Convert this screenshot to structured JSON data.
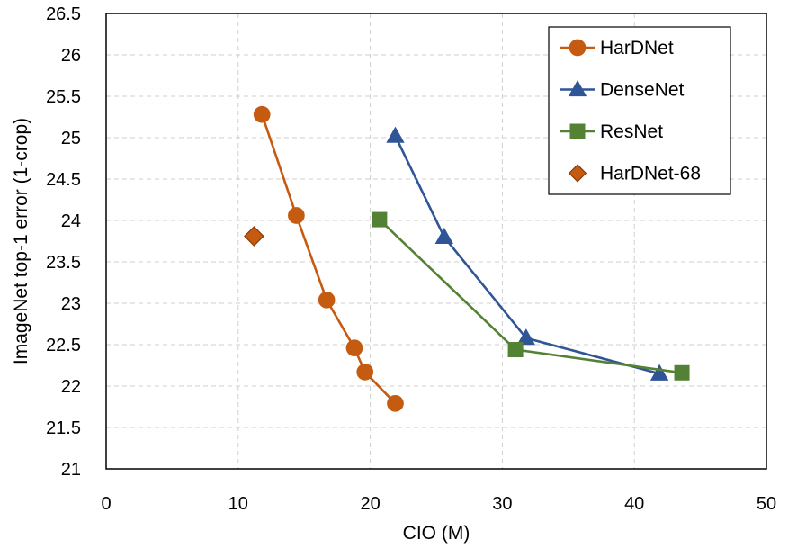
{
  "chart_data": {
    "type": "line",
    "title": "",
    "xlabel": "CIO (M)",
    "ylabel": "ImageNet top-1 error (1-crop)",
    "xlim": [
      0,
      50
    ],
    "ylim": [
      21,
      26.5
    ],
    "x_ticks": [
      0,
      10,
      20,
      30,
      40,
      50
    ],
    "y_ticks": [
      21,
      21.5,
      22,
      22.5,
      23,
      23.5,
      24,
      24.5,
      25,
      25.5,
      26,
      26.5
    ],
    "x_tick_labels": [
      "0",
      "10",
      "20",
      "30",
      "40",
      "50"
    ],
    "y_tick_labels": [
      "21",
      "21.5",
      "22",
      "22.5",
      "23",
      "23.5",
      "24",
      "24.5",
      "25",
      "25.5",
      "26",
      "26.5"
    ],
    "grid": true,
    "legend_position": "top-right",
    "series": [
      {
        "name": "HarDNet",
        "color": "#c55a11",
        "marker": "circle",
        "line": true,
        "points": [
          [
            11.8,
            25.28
          ],
          [
            14.4,
            24.06
          ],
          [
            16.7,
            23.04
          ],
          [
            18.8,
            22.46
          ],
          [
            19.6,
            22.17
          ],
          [
            21.9,
            21.79
          ]
        ]
      },
      {
        "name": "DenseNet",
        "color": "#2f5597",
        "marker": "triangle",
        "line": true,
        "points": [
          [
            21.9,
            25.02
          ],
          [
            25.6,
            23.8
          ],
          [
            31.8,
            22.58
          ],
          [
            41.9,
            22.15
          ]
        ]
      },
      {
        "name": "ResNet",
        "color": "#548235",
        "marker": "square",
        "line": true,
        "points": [
          [
            20.7,
            24.01
          ],
          [
            31.0,
            22.44
          ],
          [
            43.6,
            22.16
          ]
        ]
      },
      {
        "name": "HarDNet-68",
        "color": "#c55a11",
        "marker": "diamond",
        "line": false,
        "points": [
          [
            11.2,
            23.81
          ]
        ]
      }
    ]
  }
}
